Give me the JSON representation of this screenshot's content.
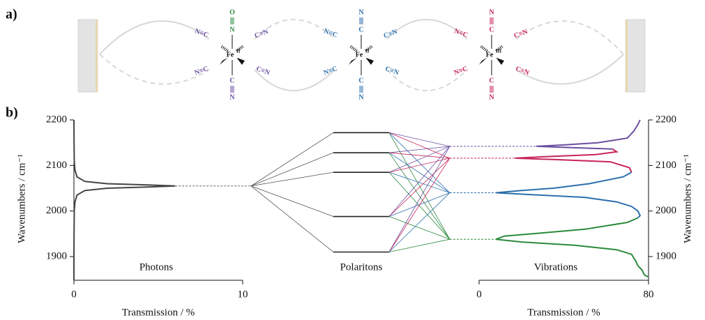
{
  "panel_labels": [
    "a)",
    "b)"
  ],
  "molecules": [
    {
      "fe": "Fe",
      "ox": "II",
      "color": "#6b4fa0",
      "top": [
        "O",
        "N"
      ],
      "top_color": "#2a8a3c",
      "bottom": [
        "C",
        "N"
      ],
      "left": "N≡C",
      "right": "C≡N"
    },
    {
      "fe": "Fe",
      "ox": "II",
      "color": "#2c6fad",
      "top": [
        "N",
        "C"
      ],
      "top_color": "#2c6fad",
      "bottom": [
        "C",
        "N"
      ],
      "left": "N≡C",
      "right": "C≡N"
    },
    {
      "fe": "Fe",
      "ox": "III",
      "color": "#c8245a",
      "top": [
        "N",
        "C"
      ],
      "top_color": "#c8245a",
      "bottom": [
        "C",
        "N"
      ],
      "left": "N≡C",
      "right": "C≡N"
    }
  ],
  "chart_data": {
    "type": "polariton",
    "ylabel": "Wavenumbers / cm⁻¹",
    "ylim": [
      1848,
      2200
    ],
    "yticks": [
      1900,
      2000,
      2100,
      2200
    ],
    "photons": {
      "label": "Photons",
      "xlabel": "Transmission / %",
      "xlim": [
        0,
        10
      ],
      "xticks": [
        0,
        10
      ],
      "color": "#444444",
      "mode": 2055,
      "wavenumbers": [
        2200,
        2150,
        2110,
        2090,
        2075,
        2065,
        2060,
        2057,
        2055,
        2053,
        2050,
        2045,
        2035,
        2020,
        2000,
        1950,
        1900,
        1848
      ],
      "transmission": [
        0.0,
        0.01,
        0.02,
        0.06,
        0.18,
        0.65,
        1.97,
        4.52,
        6.0,
        4.52,
        1.97,
        0.65,
        0.18,
        0.06,
        0.02,
        0.01,
        0.0,
        0.0
      ]
    },
    "polaritons": {
      "label": "Polaritons",
      "color": "#222222",
      "levels": [
        2172,
        2128,
        2085,
        1988,
        1910
      ]
    },
    "vibrations": {
      "label": "Vibrations",
      "xlabel": "Transmission / %",
      "xlim": [
        0,
        80
      ],
      "xticks": [
        0,
        80
      ],
      "series": [
        {
          "color": "#6b4fa0",
          "mode": 2142,
          "wavenumbers": [
            2200,
            2190,
            2175,
            2160,
            2150,
            2145,
            2142,
            2139,
            2136
          ],
          "transmission": [
            76,
            75,
            73,
            70,
            56,
            40,
            27,
            45,
            63
          ]
        },
        {
          "color": "#c8245a",
          "mode": 2116,
          "wavenumbers": [
            2136,
            2130,
            2124,
            2119,
            2116,
            2113,
            2108,
            2095,
            2085
          ],
          "transmission": [
            63,
            65,
            55,
            30,
            17,
            35,
            62,
            71,
            72
          ]
        },
        {
          "color": "#2c6fad",
          "mode": 2040,
          "wavenumbers": [
            2085,
            2075,
            2060,
            2050,
            2045,
            2040,
            2036,
            2030,
            2020,
            2010,
            2000,
            1990,
            1985
          ],
          "transmission": [
            72,
            68,
            52,
            35,
            20,
            8,
            25,
            50,
            65,
            72,
            75,
            76,
            75
          ]
        },
        {
          "color": "#2a8a3c",
          "mode": 1938,
          "wavenumbers": [
            1985,
            1975,
            1960,
            1950,
            1945,
            1938,
            1932,
            1925,
            1915,
            1905,
            1890,
            1880,
            1870,
            1860,
            1855
          ],
          "transmission": [
            75,
            70,
            50,
            25,
            12,
            8,
            20,
            45,
            65,
            72,
            74,
            75,
            77,
            78,
            80
          ]
        }
      ]
    }
  }
}
